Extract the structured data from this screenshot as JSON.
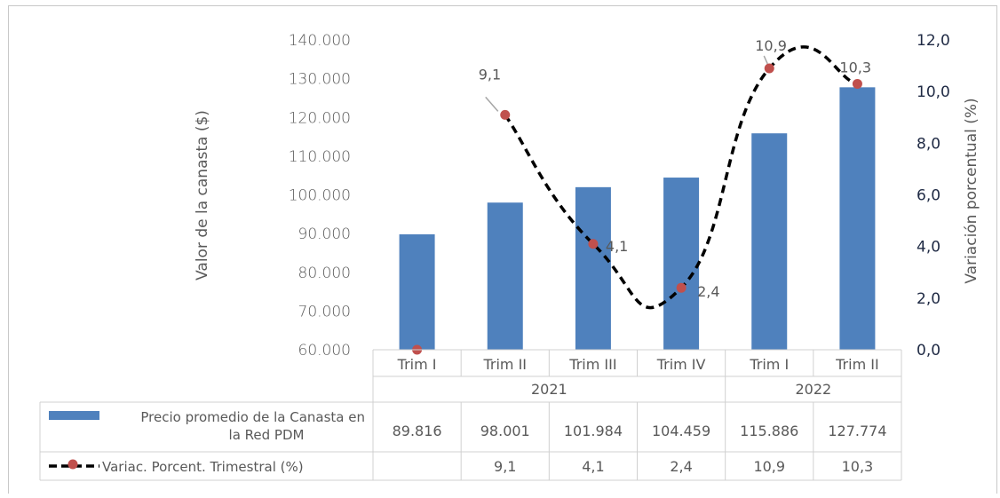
{
  "chart_data": {
    "type": "bar",
    "title": "",
    "categories": [
      "Trim I",
      "Trim II",
      "Trim III",
      "Trim IV",
      "Trim I",
      "Trim II"
    ],
    "year_groups": [
      {
        "label": "2021",
        "count": 4
      },
      {
        "label": "2022",
        "count": 2
      }
    ],
    "ylabel": "Valor de la canasta ($)",
    "ylabel_right": "Variación porcentual (%)",
    "ylim": [
      60000,
      140000
    ],
    "ylim_right": [
      0,
      12
    ],
    "yticks": [
      "140.000",
      "130.000",
      "120.000",
      "110.000",
      "100.000",
      "90.000",
      "80.000",
      "70.000",
      "60.000"
    ],
    "yticks_right": [
      "12,0",
      "10,0",
      "8,0",
      "6,0",
      "4,0",
      "2,0",
      "0,0"
    ],
    "grid": false,
    "series": [
      {
        "name": "Precio promedio de la Canasta en la Red PDM",
        "type": "bar",
        "axis": "left",
        "color": "#4f81bd",
        "values": [
          89816,
          98001,
          101984,
          104459,
          115886,
          127774
        ],
        "table_values": [
          "89.816",
          "98.001",
          "101.984",
          "104.459",
          "115.886",
          "127.774"
        ]
      },
      {
        "name": "Variac. Porcent. Trimestral (%)",
        "type": "line",
        "axis": "right",
        "color": "#000000",
        "marker_color": "#c0504d",
        "values": [
          0,
          9.1,
          4.1,
          2.4,
          10.9,
          10.3
        ],
        "table_values": [
          "",
          "9,1",
          "4,1",
          "2,4",
          "10,9",
          "10,3"
        ],
        "data_labels": [
          "",
          "9,1",
          "4,1",
          "2,4",
          "10,9",
          "10,3"
        ]
      }
    ]
  }
}
